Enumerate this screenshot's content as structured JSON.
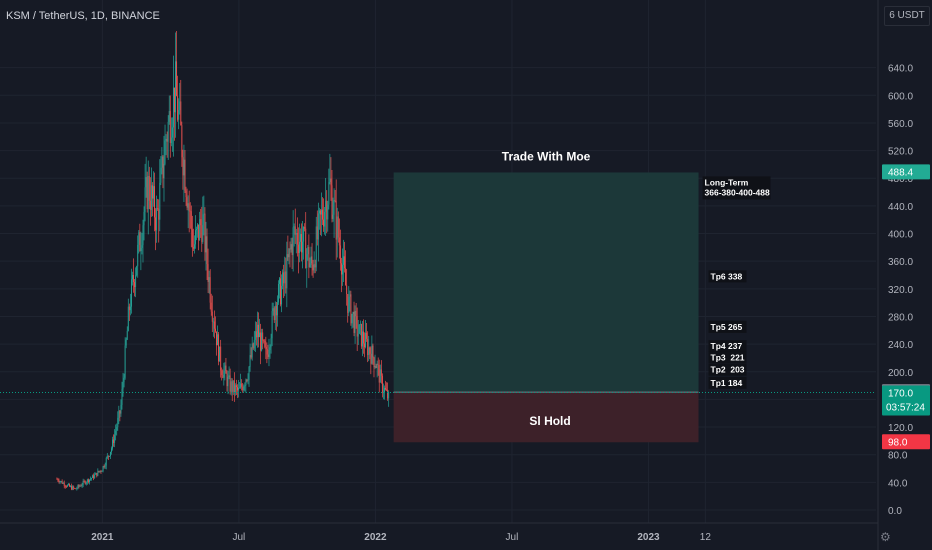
{
  "header": {
    "title": "KSM / TetherUS, 1D, BINANCE",
    "unit": "6 USDT"
  },
  "chart_data": {
    "type": "candlestick",
    "ylim": [
      0,
      680
    ],
    "y_ticks": [
      "0.0",
      "40.0",
      "80.0",
      "120.0",
      "160.0",
      "200.0",
      "240.0",
      "280.0",
      "320.0",
      "360.0",
      "400.0",
      "440.0",
      "480.0",
      "520.0",
      "560.0",
      "600.0",
      "640.0"
    ],
    "x_ticks": [
      {
        "label": "2021",
        "t": 0.0
      },
      {
        "label": "Jul",
        "t": 6.0
      },
      {
        "label": "2022",
        "t": 12.0
      },
      {
        "label": "Jul",
        "t": 18.0
      },
      {
        "label": "2023",
        "t": 24.0
      },
      {
        "label": "12",
        "t": 26.5
      }
    ],
    "x_range": [
      -4.5,
      34.0
    ],
    "price_path": [
      [
        -2.0,
        45
      ],
      [
        -1.6,
        36
      ],
      [
        -1.2,
        30
      ],
      [
        -0.8,
        40
      ],
      [
        -0.4,
        48
      ],
      [
        0.0,
        60
      ],
      [
        0.4,
        90
      ],
      [
        0.8,
        145
      ],
      [
        1.2,
        300
      ],
      [
        1.6,
        380
      ],
      [
        2.0,
        470
      ],
      [
        2.4,
        420
      ],
      [
        2.8,
        540
      ],
      [
        3.2,
        610
      ],
      [
        3.6,
        500
      ],
      [
        4.0,
        380
      ],
      [
        4.4,
        420
      ],
      [
        4.8,
        300
      ],
      [
        5.2,
        210
      ],
      [
        5.6,
        180
      ],
      [
        6.0,
        170
      ],
      [
        6.4,
        200
      ],
      [
        6.8,
        260
      ],
      [
        7.2,
        220
      ],
      [
        7.6,
        300
      ],
      [
        8.0,
        330
      ],
      [
        8.4,
        400
      ],
      [
        8.8,
        390
      ],
      [
        9.2,
        350
      ],
      [
        9.6,
        420
      ],
      [
        10.0,
        470
      ],
      [
        10.4,
        390
      ],
      [
        10.8,
        300
      ],
      [
        11.2,
        260
      ],
      [
        11.6,
        240
      ],
      [
        12.0,
        215
      ],
      [
        12.3,
        180
      ],
      [
        12.6,
        160
      ]
    ],
    "candle_range": [
      -2.0,
      12.6
    ],
    "long_position": {
      "start_t": 12.8,
      "end_t": 26.2,
      "entry": 170.6,
      "target": 488.4,
      "stop": 98.0
    },
    "current_price": 170.0,
    "price_labels": {
      "target": "488.4",
      "entry": "170.6",
      "current": "170.0",
      "countdown": "03:57:24",
      "stop": "98.0"
    },
    "annotations": {
      "trade_title": "Trade With Moe",
      "stop_label": "Sl Hold",
      "long_term_line1": "Long-Term",
      "long_term_line2": "366-380-400-488",
      "tp_labels": [
        {
          "text": "Tp6 338",
          "price": 338
        },
        {
          "text": "Tp5 265",
          "price": 265
        },
        {
          "text": "Tp4 237",
          "price": 237
        },
        {
          "text": "Tp3  221",
          "price": 221
        },
        {
          "text": "Tp2  203",
          "price": 203
        },
        {
          "text": "Tp1 184",
          "price": 184
        }
      ]
    },
    "colors": {
      "background": "#161a25",
      "up": "#26a69a",
      "down": "#ef5350",
      "profit_zone": "#1c3a3a",
      "loss_zone": "#3f2229",
      "target_tag": "#22ab94",
      "stop_tag": "#f23645",
      "entry_tag": "#787b86",
      "current_tag": "#089981"
    }
  }
}
